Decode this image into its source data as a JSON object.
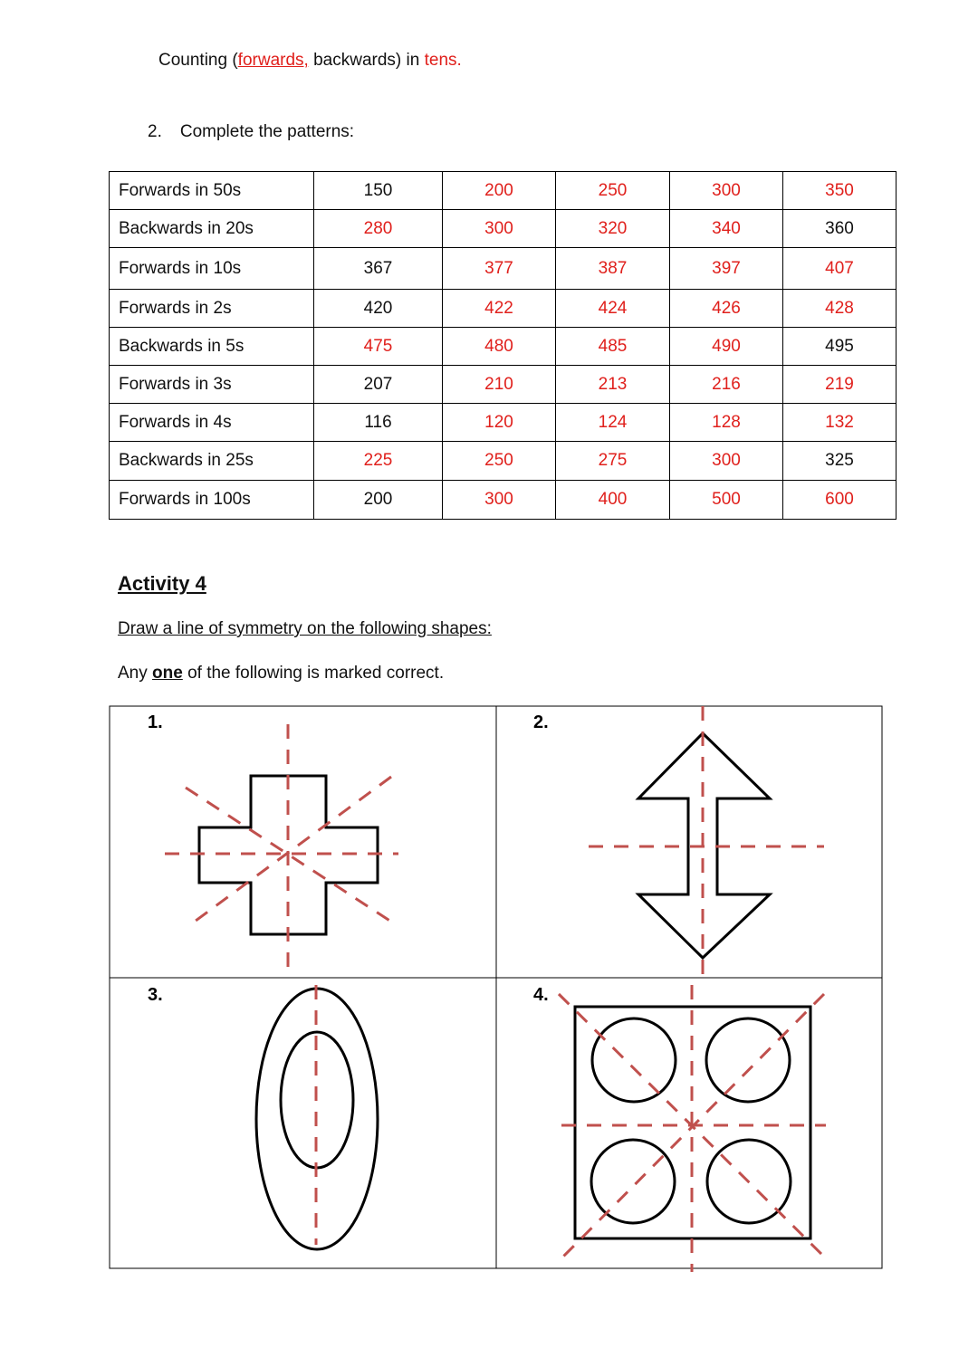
{
  "header": {
    "prefix": "Counting (",
    "forwards": "forwards,",
    "middle": " backwards) in ",
    "tens": "tens."
  },
  "question": {
    "number": "2.",
    "text": "Complete the patterns:"
  },
  "patterns": [
    {
      "label": "Forwards in 50s",
      "values": [
        "150",
        "200",
        "250",
        "300",
        "350"
      ],
      "given": [
        0
      ]
    },
    {
      "label": "Backwards in 20s",
      "values": [
        "280",
        "300",
        "320",
        "340",
        "360"
      ],
      "given": [
        4
      ]
    },
    {
      "label": "Forwards in 10s",
      "values": [
        "367",
        "377",
        "387",
        "397",
        "407"
      ],
      "given": [
        0
      ]
    },
    {
      "label": "Forwards in 2s",
      "values": [
        "420",
        "422",
        "424",
        "426",
        "428"
      ],
      "given": [
        0
      ]
    },
    {
      "label": "Backwards in 5s",
      "values": [
        "475",
        "480",
        "485",
        "490",
        "495"
      ],
      "given": [
        4
      ]
    },
    {
      "label": "Forwards in 3s",
      "values": [
        "207",
        "210",
        "213",
        "216",
        "219"
      ],
      "given": [
        0
      ]
    },
    {
      "label": "Forwards in 4s",
      "values": [
        "116",
        "120",
        "124",
        "128",
        "132"
      ],
      "given": [
        0
      ]
    },
    {
      "label": "Backwards in 25s",
      "values": [
        "225",
        "250",
        "275",
        "300",
        "325"
      ],
      "given": [
        4
      ]
    },
    {
      "label": "Forwards in 100s",
      "values": [
        "200",
        "300",
        "400",
        "500",
        "600"
      ],
      "given": [
        0
      ]
    }
  ],
  "activity": {
    "title": "Activity 4",
    "instruction": "Draw a line of symmetry on the following shapes:",
    "note_pre": "Any ",
    "note_bold": "one",
    "note_post": " of the following is marked correct."
  },
  "shapes": [
    {
      "number": "1."
    },
    {
      "number": "2."
    },
    {
      "number": "3."
    },
    {
      "number": "4."
    }
  ],
  "colors": {
    "answer": "#e0201c",
    "symmetry_line": "#c0504d"
  }
}
